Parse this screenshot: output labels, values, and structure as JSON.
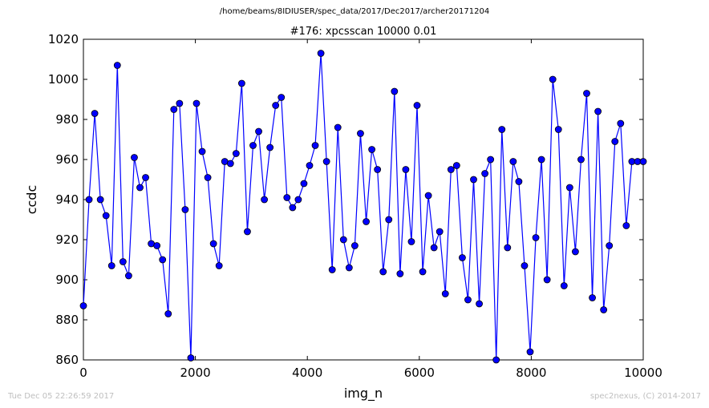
{
  "header": {
    "path": "/home/beams/8IDIUSER/spec_data/2017/Dec2017/archer20171204"
  },
  "footer": {
    "timestamp": "Tue Dec 05 22:26:59 2017",
    "credit": "spec2nexus, (C) 2014-2017"
  },
  "chart_data": {
    "type": "line",
    "title": "#176: xpcsscan 10000 0.01",
    "xlabel": "img_n",
    "ylabel": "ccdc",
    "xlim": [
      0,
      10000
    ],
    "ylim": [
      860,
      1020
    ],
    "xticks": [
      0,
      2000,
      4000,
      6000,
      8000,
      10000
    ],
    "yticks": [
      860,
      880,
      900,
      920,
      940,
      960,
      980,
      1000,
      1020
    ],
    "line_color": "#0000ff",
    "marker": "circle",
    "grid": false,
    "series": [
      {
        "x": [
          0,
          101,
          202,
          303,
          404,
          505,
          606,
          707,
          808,
          909,
          1010,
          1111,
          1212,
          1313,
          1414,
          1515,
          1616,
          1717,
          1818,
          1919,
          2020,
          2121,
          2222,
          2323,
          2424,
          2525,
          2626,
          2727,
          2828,
          2929,
          3030,
          3131,
          3232,
          3333,
          3434,
          3535,
          3636,
          3737,
          3838,
          3939,
          4040,
          4141,
          4242,
          4343,
          4444,
          4545,
          4646,
          4747,
          4848,
          4949,
          5051,
          5152,
          5253,
          5354,
          5455,
          5556,
          5657,
          5758,
          5859,
          5960,
          6061,
          6162,
          6263,
          6364,
          6465,
          6566,
          6667,
          6768,
          6869,
          6970,
          7071,
          7172,
          7273,
          7374,
          7475,
          7576,
          7677,
          7778,
          7879,
          7980,
          8081,
          8182,
          8283,
          8384,
          8485,
          8586,
          8687,
          8788,
          8889,
          8990,
          9091,
          9192,
          9293,
          9394,
          9495,
          9596,
          9697,
          9798,
          9899,
          10000
        ],
        "values": [
          887,
          940,
          983,
          940,
          932,
          907,
          1007,
          909,
          902,
          961,
          946,
          951,
          918,
          917,
          910,
          883,
          985,
          988,
          935,
          861,
          988,
          964,
          951,
          918,
          907,
          959,
          958,
          963,
          998,
          924,
          967,
          974,
          940,
          966,
          987,
          991,
          941,
          936,
          940,
          948,
          957,
          967,
          1013,
          959,
          905,
          976,
          920,
          906,
          917,
          973,
          929,
          965,
          955,
          904,
          930,
          994,
          903,
          955,
          919,
          987,
          904,
          942,
          916,
          924,
          893,
          955,
          957,
          911,
          890,
          950,
          888,
          953,
          960,
          860,
          975,
          916,
          959,
          949,
          907,
          864,
          921,
          960,
          900,
          1000,
          975,
          897,
          946,
          914,
          960,
          993,
          891,
          984,
          885,
          917,
          969,
          978,
          927,
          959,
          959,
          959
        ]
      }
    ]
  }
}
